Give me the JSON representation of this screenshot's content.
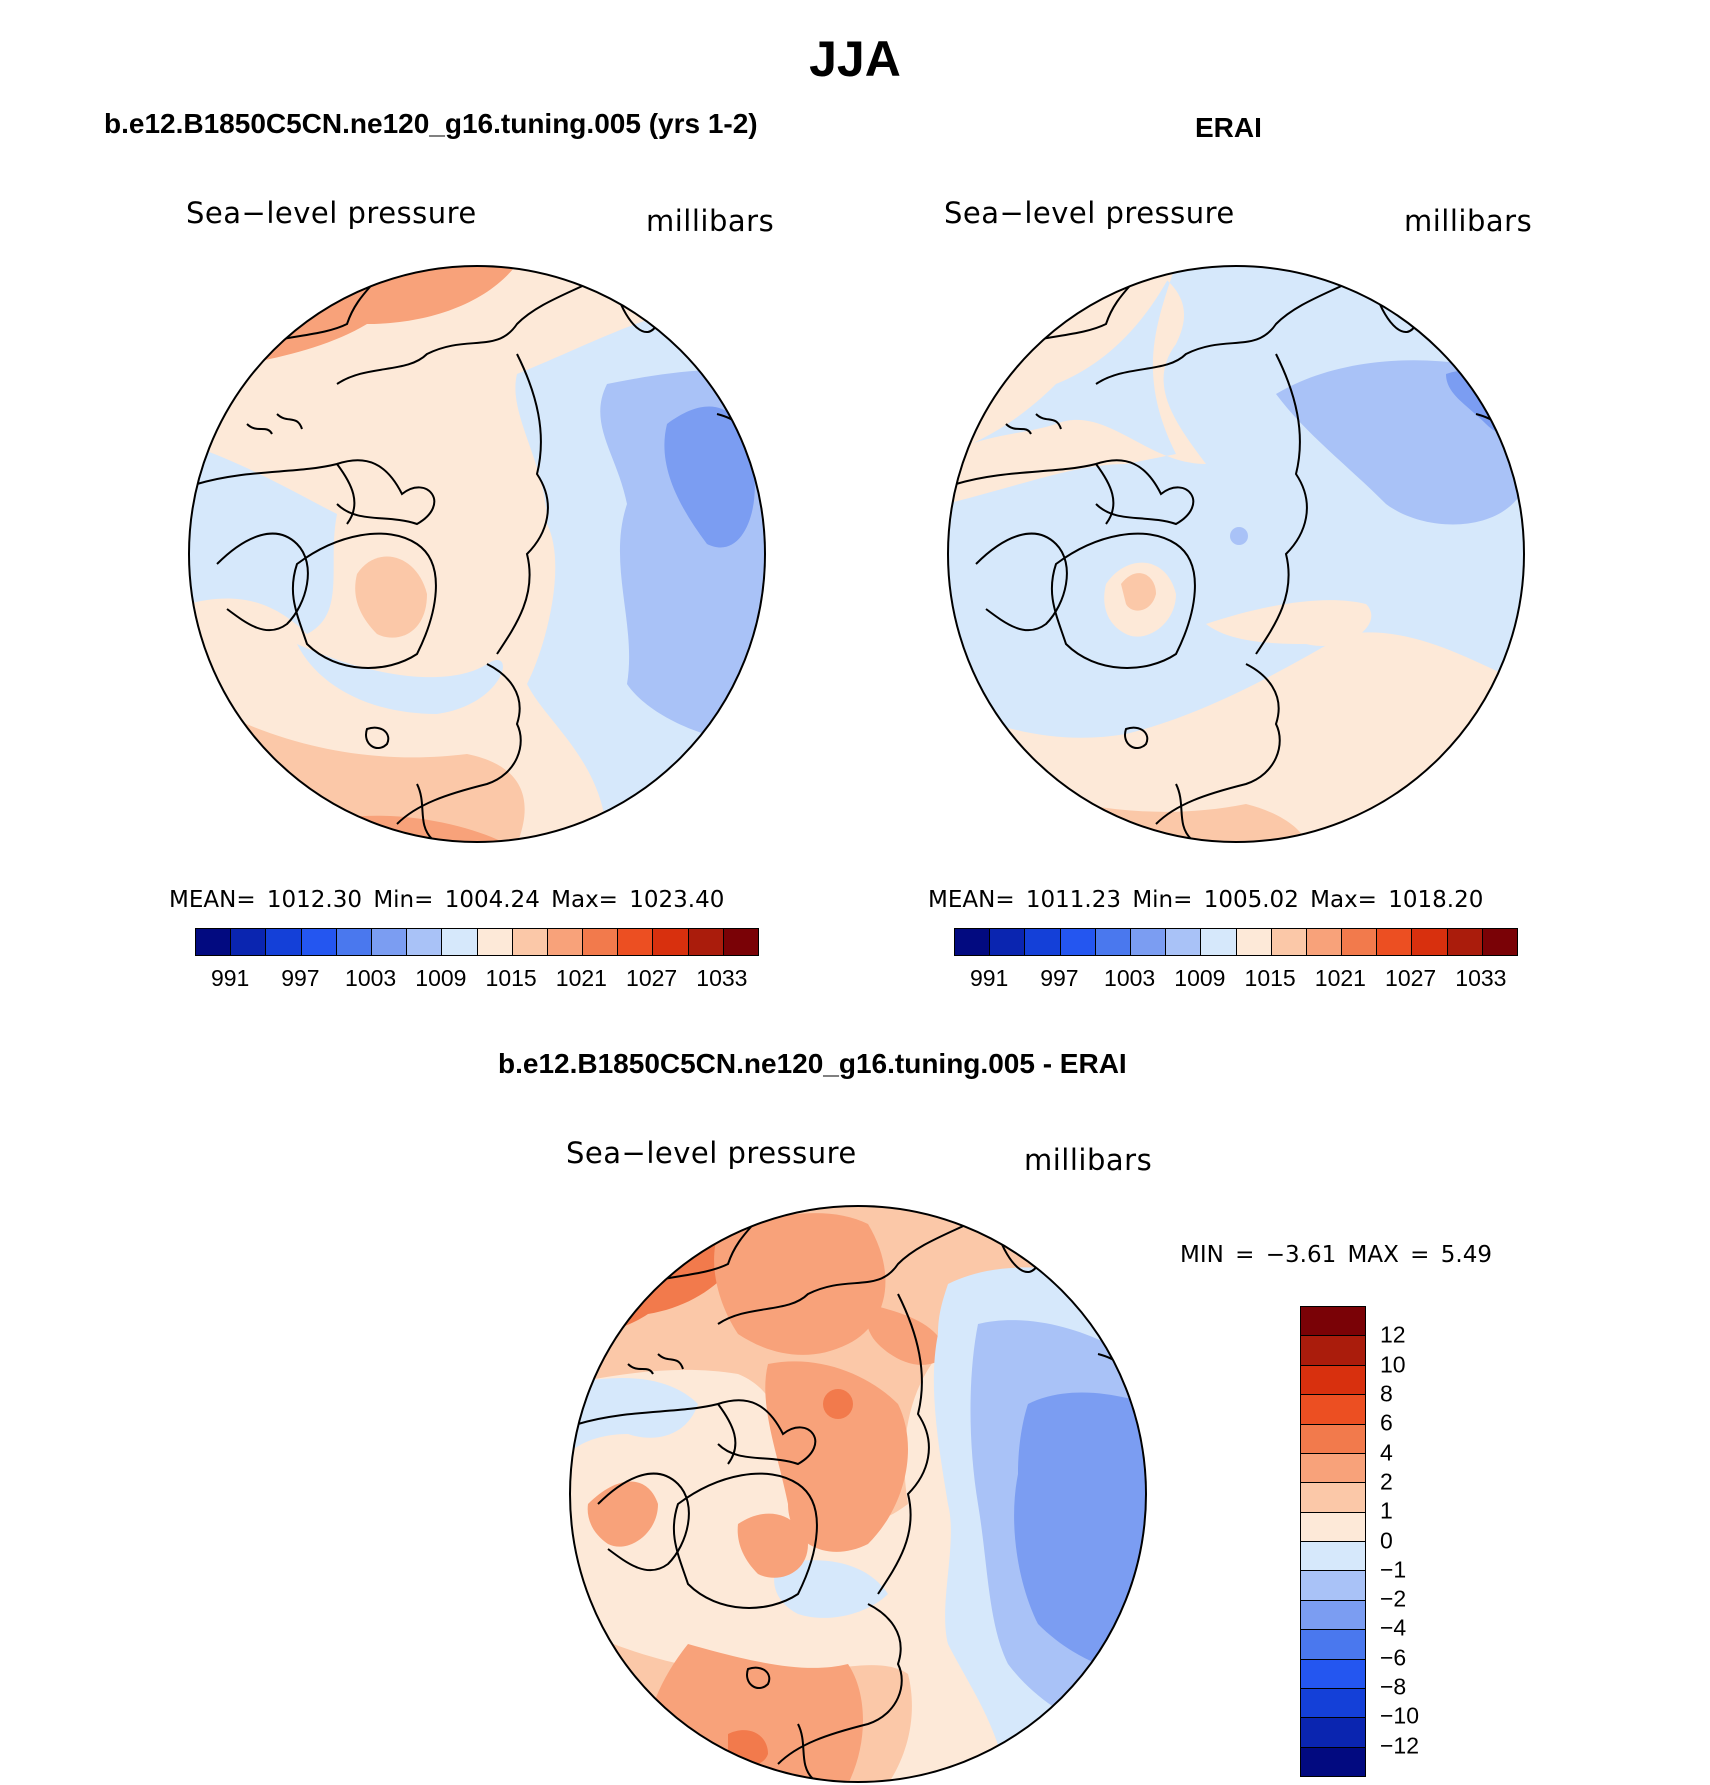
{
  "figure_title": "JJA",
  "panels": [
    {
      "title": "b.e12.B1850C5CN.ne120_g16.tuning.005 (yrs 1-2)",
      "variable": "Sea−level pressure",
      "units": "millibars",
      "stats": "MEAN=  1012.30    Min=  1004.24    Max=  1023.40"
    },
    {
      "title": "ERAI",
      "variable": "Sea−level pressure",
      "units": "millibars",
      "stats": "MEAN=  1011.23    Min=  1005.02    Max=  1018.20"
    },
    {
      "title": "b.e12.B1850C5CN.ne120_g16.tuning.005 - ERAI",
      "variable": "Sea−level pressure",
      "units": "millibars",
      "stats": "MIN =    −3.61  MAX =      5.49"
    }
  ],
  "colorbar_abs": {
    "labels": [
      "991",
      "997",
      "1003",
      "1009",
      "1015",
      "1021",
      "1027",
      "1033"
    ],
    "colors": [
      "#020a80",
      "#0a25b0",
      "#1440d8",
      "#2456f0",
      "#4a78ee",
      "#7b9df2",
      "#a9c2f7",
      "#d6e8fb",
      "#fde9d8",
      "#fbc8a8",
      "#f8a27a",
      "#f27a4c",
      "#ec4f22",
      "#d8300e",
      "#aa1c0c",
      "#7a0206"
    ]
  },
  "colorbar_diff": {
    "labels": [
      "12",
      "10",
      "8",
      "6",
      "4",
      "2",
      "1",
      "0",
      "−1",
      "−2",
      "−4",
      "−6",
      "−8",
      "−10",
      "−12"
    ],
    "colors": [
      "#7a0206",
      "#aa1c0c",
      "#d8300e",
      "#ec4f22",
      "#f27a4c",
      "#f8a27a",
      "#fbc8a8",
      "#fde9d8",
      "#d6e8fb",
      "#a9c2f7",
      "#7b9df2",
      "#4a78ee",
      "#2456f0",
      "#1440d8",
      "#0a25b0",
      "#020a80"
    ]
  }
}
